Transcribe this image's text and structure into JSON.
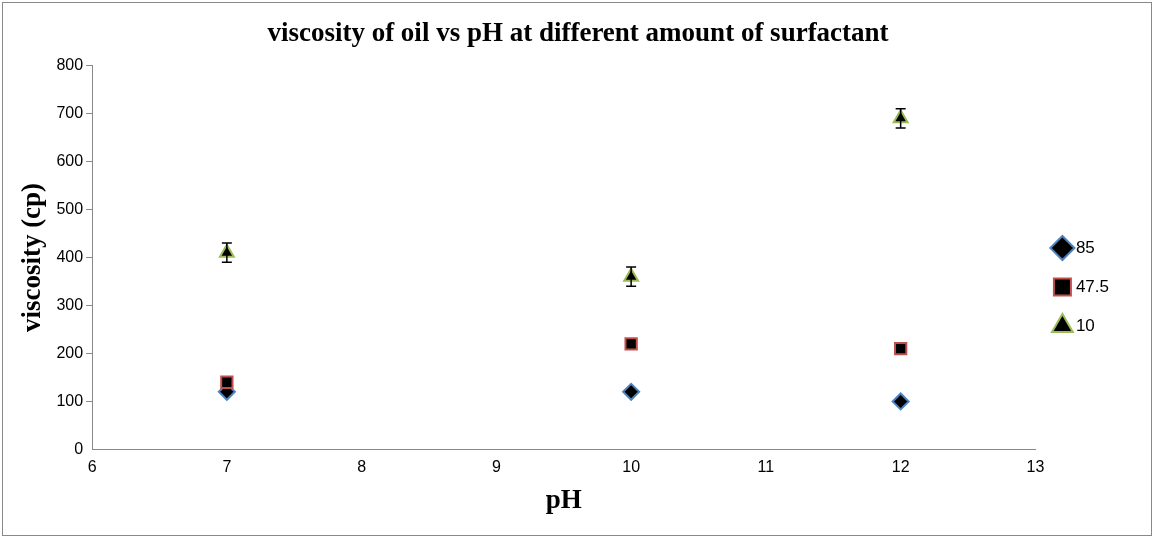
{
  "chart_data": {
    "type": "scatter",
    "title": "viscosity of oil vs pH at different amount of surfactant",
    "xlabel": "pH",
    "ylabel": "viscosity (cp)",
    "x": [
      7,
      10,
      12
    ],
    "series": [
      {
        "name": "85",
        "color": "#000000",
        "marker": "diamond",
        "values": [
          120,
          120,
          100
        ]
      },
      {
        "name": "47.5",
        "color": "#000000",
        "marker": "square",
        "values": [
          140,
          220,
          210
        ]
      },
      {
        "name": "10",
        "color": "#000000",
        "marker": "triangle",
        "values": [
          410,
          360,
          690
        ],
        "errors": [
          20,
          20,
          20
        ]
      }
    ],
    "xlim": [
      6,
      13
    ],
    "xticks": [
      6,
      7,
      8,
      9,
      10,
      11,
      12,
      13
    ],
    "ylim": [
      0,
      800
    ],
    "yticks": [
      0,
      100,
      200,
      300,
      400,
      500,
      600,
      700,
      800
    ],
    "grid": false,
    "legend": "right"
  }
}
